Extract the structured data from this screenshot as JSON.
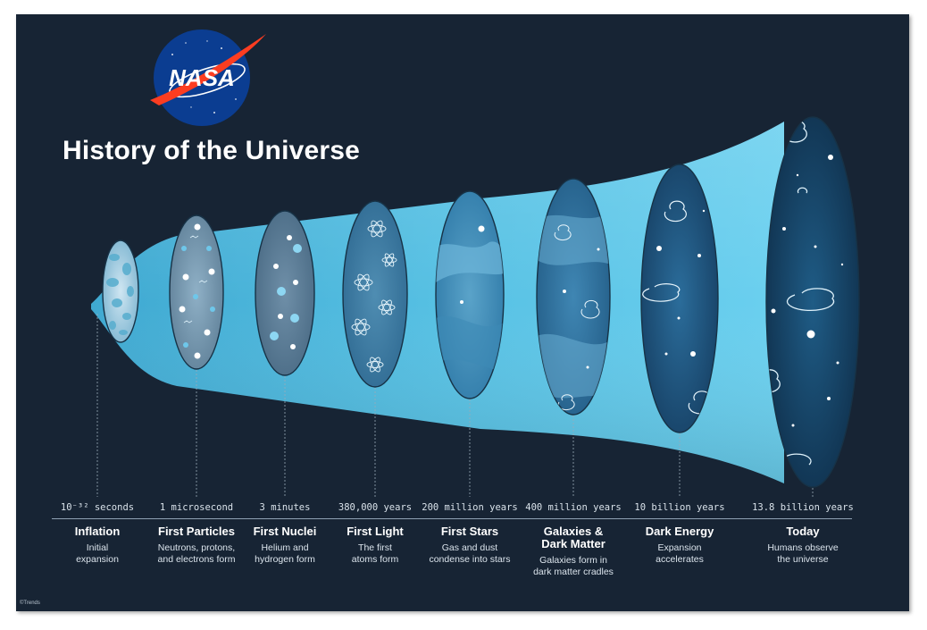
{
  "logo": {
    "text": "NASA"
  },
  "title": "History of the Universe",
  "stages": [
    {
      "time": "10⁻³² seconds",
      "name": "Inflation",
      "desc_lines": [
        "Initial",
        "expansion"
      ]
    },
    {
      "time": "1 microsecond",
      "name": "First Particles",
      "desc_lines": [
        "Neutrons, protons,",
        "and electrons form"
      ]
    },
    {
      "time": "3 minutes",
      "name": "First Nuclei",
      "desc_lines": [
        "Helium and",
        "hydrogen form"
      ]
    },
    {
      "time": "380,000 years",
      "name": "First Light",
      "desc_lines": [
        "The first",
        "atoms form"
      ]
    },
    {
      "time": "200 million years",
      "name": "First Stars",
      "desc_lines": [
        "Gas and dust",
        "condense into stars"
      ]
    },
    {
      "time": "400 million years",
      "name_lines": [
        "Galaxies &",
        "Dark Matter"
      ],
      "desc_lines": [
        "Galaxies form in",
        "dark matter cradles"
      ]
    },
    {
      "time": "10 billion years",
      "name": "Dark Energy",
      "desc_lines": [
        "Expansion",
        "accelerates"
      ]
    },
    {
      "time": "13.8 billion years",
      "name": "Today",
      "desc_lines": [
        "Humans observe",
        "the universe"
      ]
    }
  ],
  "credit": "©Trends",
  "colors": {
    "background": "#172434",
    "funnel": "#5fc6e6",
    "nasa_blue": "#0b3d91",
    "nasa_red": "#fc3d21",
    "text": "#ffffff"
  }
}
